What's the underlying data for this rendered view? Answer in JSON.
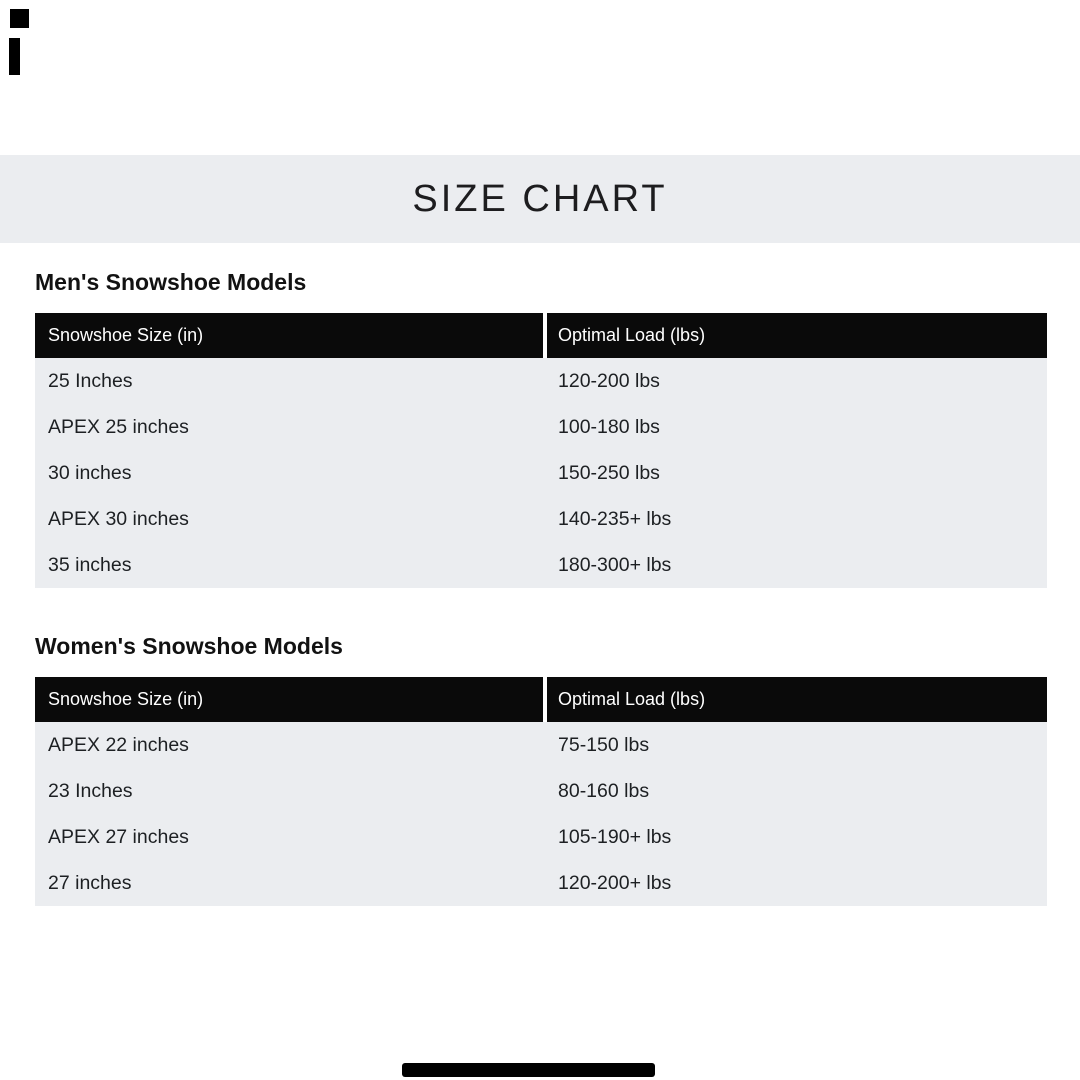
{
  "header": {
    "title": "SIZE CHART"
  },
  "colors": {
    "band_bg": "#ebedf0",
    "table_header_bg": "#0a0a0a",
    "table_header_text": "#ffffff",
    "table_body_bg": "#ebedf0",
    "table_body_text": "#1d2023",
    "accent_marks": "#000000"
  },
  "sections": [
    {
      "section_title": "Men's Snowshoe Models",
      "columns": [
        "Snowshoe Size (in)",
        "Optimal Load (lbs)"
      ],
      "rows": [
        [
          "25 Inches",
          "120-200 lbs"
        ],
        [
          "APEX 25 inches",
          "100-180 lbs"
        ],
        [
          "30 inches",
          "150-250 lbs"
        ],
        [
          "APEX 30 inches",
          "140-235+ lbs"
        ],
        [
          "35 inches",
          "180-300+ lbs"
        ]
      ]
    },
    {
      "section_title": "Women's Snowshoe Models",
      "columns": [
        "Snowshoe Size (in)",
        "Optimal Load (lbs)"
      ],
      "rows": [
        [
          "APEX 22 inches",
          "75-150 lbs"
        ],
        [
          "23 Inches",
          "80-160 lbs"
        ],
        [
          "APEX 27 inches",
          "105-190+ lbs"
        ],
        [
          "27 inches",
          "120-200+ lbs"
        ]
      ]
    }
  ]
}
